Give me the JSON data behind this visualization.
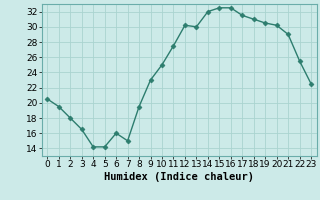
{
  "x": [
    0,
    1,
    2,
    3,
    4,
    5,
    6,
    7,
    8,
    9,
    10,
    11,
    12,
    13,
    14,
    15,
    16,
    17,
    18,
    19,
    20,
    21,
    22,
    23
  ],
  "y": [
    20.5,
    19.5,
    18.0,
    16.5,
    14.2,
    14.2,
    16.0,
    15.0,
    19.5,
    23.0,
    25.0,
    27.5,
    30.2,
    30.0,
    32.0,
    32.5,
    32.5,
    31.5,
    31.0,
    30.5,
    30.2,
    29.0,
    25.5,
    22.5
  ],
  "line_color": "#2d7d6e",
  "marker": "D",
  "markersize": 2.5,
  "bg_color": "#cceae8",
  "grid_color": "#aad4d0",
  "xlabel": "Humidex (Indice chaleur)",
  "ylim": [
    13,
    33
  ],
  "xlim": [
    -0.5,
    23.5
  ],
  "yticks": [
    14,
    16,
    18,
    20,
    22,
    24,
    26,
    28,
    30,
    32
  ],
  "xticks": [
    0,
    1,
    2,
    3,
    4,
    5,
    6,
    7,
    8,
    9,
    10,
    11,
    12,
    13,
    14,
    15,
    16,
    17,
    18,
    19,
    20,
    21,
    22,
    23
  ],
  "xlabel_fontsize": 7.5,
  "tick_fontsize": 6.5,
  "linewidth": 1.0
}
